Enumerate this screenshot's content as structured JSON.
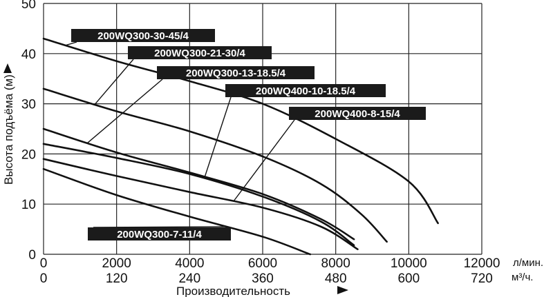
{
  "chart_data": {
    "type": "line",
    "xlabel": "Производительность",
    "ylabel": "Высота подъёма (м)",
    "x_units": [
      "л/мин.",
      "м³/ч."
    ],
    "xlim": [
      0,
      12000
    ],
    "ylim": [
      0,
      50
    ],
    "x_ticks_lpm": [
      "0",
      "2000",
      "4000",
      "6000",
      "8000",
      "10000",
      "12000"
    ],
    "x_ticks_m3h": [
      "0",
      "120",
      "240",
      "360",
      "480",
      "600",
      "720"
    ],
    "y_ticks": [
      "0",
      "10",
      "20",
      "30",
      "40",
      "50"
    ],
    "grid": true,
    "series": [
      {
        "name": "200WQ300-30-45/4",
        "points": [
          [
            0,
            43
          ],
          [
            2000,
            38.5
          ],
          [
            4000,
            34.5
          ],
          [
            6000,
            30
          ],
          [
            8000,
            23
          ],
          [
            10000,
            14.5
          ],
          [
            10800,
            6.2
          ]
        ]
      },
      {
        "name": "200WQ300-21-30/4",
        "points": [
          [
            0,
            33
          ],
          [
            2000,
            28.5
          ],
          [
            4000,
            24.5
          ],
          [
            6000,
            19.5
          ],
          [
            7600,
            14
          ],
          [
            8700,
            8
          ],
          [
            9400,
            2.5
          ]
        ]
      },
      {
        "name": "200WQ300-13-18.5/4",
        "points": [
          [
            0,
            25
          ],
          [
            2000,
            20.3
          ],
          [
            4000,
            16.3
          ],
          [
            6000,
            12
          ],
          [
            7600,
            7
          ],
          [
            8500,
            3
          ]
        ]
      },
      {
        "name": "200WQ400-10-18.5/4",
        "points": [
          [
            0,
            22
          ],
          [
            2000,
            19.2
          ],
          [
            4000,
            16
          ],
          [
            6000,
            11.5
          ],
          [
            7600,
            6.5
          ],
          [
            8500,
            1.8
          ]
        ]
      },
      {
        "name": "200WQ400-8-15/4",
        "points": [
          [
            0,
            19
          ],
          [
            2000,
            15.6
          ],
          [
            4000,
            12.4
          ],
          [
            6000,
            9.3
          ],
          [
            7600,
            5.5
          ],
          [
            8600,
            1
          ]
        ]
      },
      {
        "name": "200WQ300-7-11/4",
        "points": [
          [
            0,
            17
          ],
          [
            2000,
            11.8
          ],
          [
            4000,
            7.5
          ],
          [
            6000,
            3.5
          ],
          [
            7300,
            0
          ]
        ]
      }
    ],
    "annotations": [
      {
        "text": "200WQ300-30-45/4",
        "series": 0,
        "anchor_x": 600
      },
      {
        "text": "200WQ300-21-30/4",
        "series": 1,
        "anchor_x": 1400
      },
      {
        "text": "200WQ300-13-18.5/4",
        "series": 2,
        "anchor_x": 1200
      },
      {
        "text": "200WQ400-10-18.5/4",
        "series": 3,
        "anchor_x": 4400
      },
      {
        "text": "200WQ400-8-15/4",
        "series": 4,
        "anchor_x": 5200
      },
      {
        "text": "200WQ300-7-11/4",
        "series": 5,
        "anchor_x": 5000
      }
    ]
  }
}
